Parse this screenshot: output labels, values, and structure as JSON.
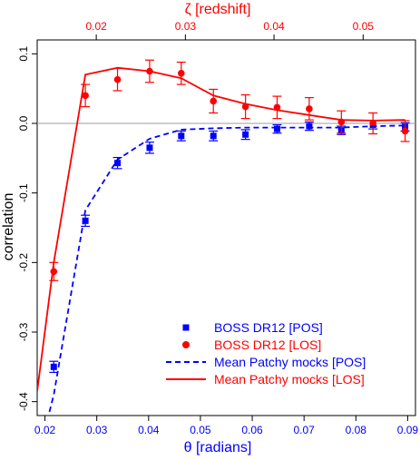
{
  "chart_data": {
    "type": "scatter",
    "top_axis_label": "ζ [redshift]",
    "xlabel": "θ [radians]",
    "ylabel": "correlation",
    "xlim": [
      0.0185,
      0.0915
    ],
    "ylim": [
      -0.42,
      0.12
    ],
    "x_ticks": [
      0.02,
      0.03,
      0.04,
      0.05,
      0.06,
      0.07,
      0.08,
      0.09
    ],
    "x_tick_labels": [
      "0.02",
      "0.03",
      "0.04",
      "0.05",
      "0.06",
      "0.07",
      "0.08",
      "0.09"
    ],
    "y_ticks": [
      -0.4,
      -0.3,
      -0.2,
      -0.1,
      0.0,
      0.1
    ],
    "y_tick_labels": [
      "-0.4",
      "-0.3",
      "-0.2",
      "-0.1",
      "0.0",
      "0.1"
    ],
    "top_ticks_theta": [
      0.0299,
      0.0471,
      0.0642,
      0.0814
    ],
    "top_tick_labels": [
      "0.02",
      "0.03",
      "0.04",
      "0.05"
    ],
    "zero_line": 0.0,
    "legend_position": "bottom-right",
    "colors": {
      "pos": "#0000ff",
      "los": "#ff0000",
      "zero": "#9e9e9e",
      "axis": "#000000"
    },
    "series": [
      {
        "name": "BOSS DR12 [POS]",
        "kind": "points",
        "marker": "square",
        "color": "#0000ff",
        "x": [
          0.0217,
          0.0278,
          0.034,
          0.0402,
          0.0463,
          0.0525,
          0.0587,
          0.0648,
          0.071,
          0.0772,
          0.0833,
          0.0895
        ],
        "y": [
          -0.35,
          -0.14,
          -0.057,
          -0.035,
          -0.018,
          -0.018,
          -0.016,
          -0.008,
          -0.004,
          -0.01,
          -0.002,
          -0.005
        ],
        "err": [
          0.008,
          0.008,
          0.008,
          0.008,
          0.007,
          0.007,
          0.007,
          0.006,
          0.006,
          0.006,
          0.006,
          0.006
        ]
      },
      {
        "name": "BOSS DR12 [LOS]",
        "kind": "points",
        "marker": "circle",
        "color": "#ff0000",
        "x": [
          0.0217,
          0.0278,
          0.034,
          0.0402,
          0.0463,
          0.0525,
          0.0587,
          0.0648,
          0.071,
          0.0772,
          0.0833,
          0.0895
        ],
        "y": [
          -0.213,
          0.04,
          0.063,
          0.075,
          0.072,
          0.032,
          0.024,
          0.023,
          0.021,
          0.002,
          0.0,
          -0.011
        ],
        "err": [
          0.013,
          0.016,
          0.016,
          0.016,
          0.016,
          0.017,
          0.017,
          0.016,
          0.016,
          0.016,
          0.015,
          0.015
        ]
      },
      {
        "name": "Mean Patchy mocks [POS]",
        "kind": "line",
        "dash": true,
        "color": "#0000ff",
        "x": [
          0.02,
          0.0217,
          0.0278,
          0.034,
          0.0402,
          0.0463,
          0.0525,
          0.0587,
          0.0648,
          0.071,
          0.0772,
          0.0833,
          0.0895
        ],
        "y": [
          -0.44,
          -0.39,
          -0.125,
          -0.052,
          -0.022,
          -0.009,
          -0.007,
          -0.006,
          -0.006,
          -0.006,
          -0.006,
          -0.004,
          -0.003
        ]
      },
      {
        "name": "Mean Patchy mocks [LOS]",
        "kind": "line",
        "dash": false,
        "color": "#ff0000",
        "x": [
          0.0185,
          0.0217,
          0.0278,
          0.034,
          0.0402,
          0.0463,
          0.0525,
          0.0587,
          0.0648,
          0.071,
          0.0772,
          0.0833,
          0.0895
        ],
        "y": [
          -0.385,
          -0.2,
          0.07,
          0.08,
          0.075,
          0.065,
          0.04,
          0.028,
          0.019,
          0.012,
          0.005,
          0.004,
          0.005
        ]
      }
    ]
  }
}
